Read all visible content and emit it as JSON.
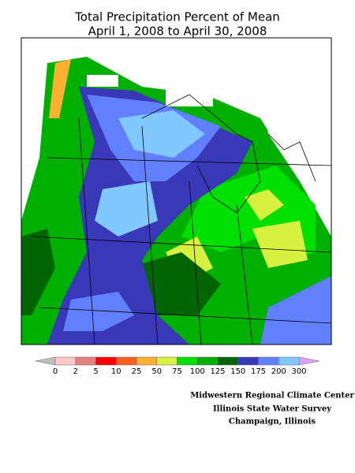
{
  "title": [
    "Total Precipitation Percent of Mean",
    "April 1, 2008 to April 30, 2008"
  ],
  "legend": {
    "ticks": [
      0,
      2,
      5,
      10,
      25,
      50,
      75,
      100,
      125,
      150,
      175,
      200,
      300
    ],
    "colors": [
      "#ffc8c8",
      "#e08080",
      "#ff0000",
      "#ff6020",
      "#ffb030",
      "#d8f040",
      "#00e000",
      "#00b000",
      "#006400",
      "#3838b8",
      "#6080ff",
      "#80c8ff"
    ],
    "below_color": "#c0c0c0",
    "above_color": "#e0a0ff"
  },
  "credits": [
    "Midwestern Regional Climate Center",
    "Illinois State Water Survey",
    "Champaign, Illinois"
  ]
}
